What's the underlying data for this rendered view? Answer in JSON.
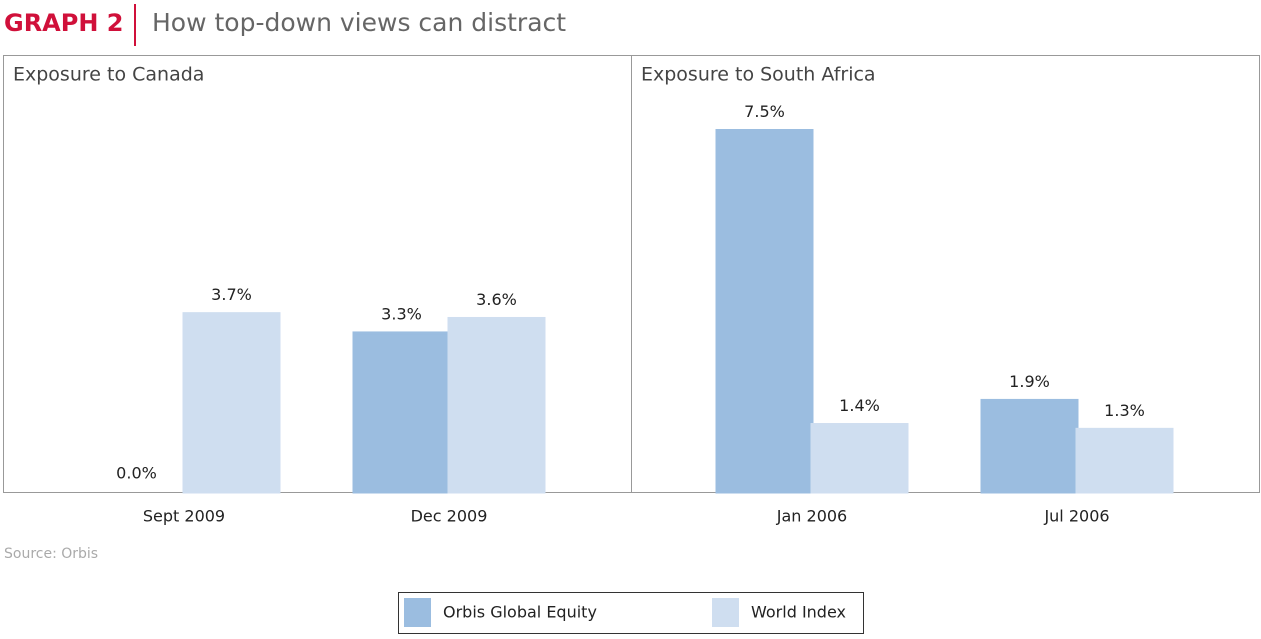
{
  "header": {
    "label": "GRAPH 2",
    "title": "How top-down views can distract"
  },
  "chart_data": [
    {
      "type": "bar",
      "title": "Exposure to Canada",
      "categories": [
        "Sept 2009",
        "Dec 2009"
      ],
      "series": [
        {
          "name": "Orbis Global Equity",
          "color": "#9bbde0",
          "values": [
            0,
            3.3
          ],
          "value_labels": [
            "0.0%",
            "3.3%"
          ]
        },
        {
          "name": "World Index",
          "color": "#cfdef0",
          "values": [
            3.7,
            3.6
          ],
          "value_labels": [
            "3.7%",
            "3.6%"
          ]
        }
      ]
    },
    {
      "type": "bar",
      "title": "Exposure to South Africa",
      "categories": [
        "Jan 2006",
        "Jul 2006"
      ],
      "series": [
        {
          "color": "#9bbde0",
          "values": [
            7.5,
            1.9
          ],
          "value_labels": [
            "7.5%",
            "1.9%"
          ]
        },
        {
          "color": "#cfdef0",
          "values": [
            1.4,
            1.3
          ],
          "value_labels": [
            "1.4%",
            "1.3%"
          ]
        }
      ]
    }
  ],
  "source": "Source: Orbis"
}
